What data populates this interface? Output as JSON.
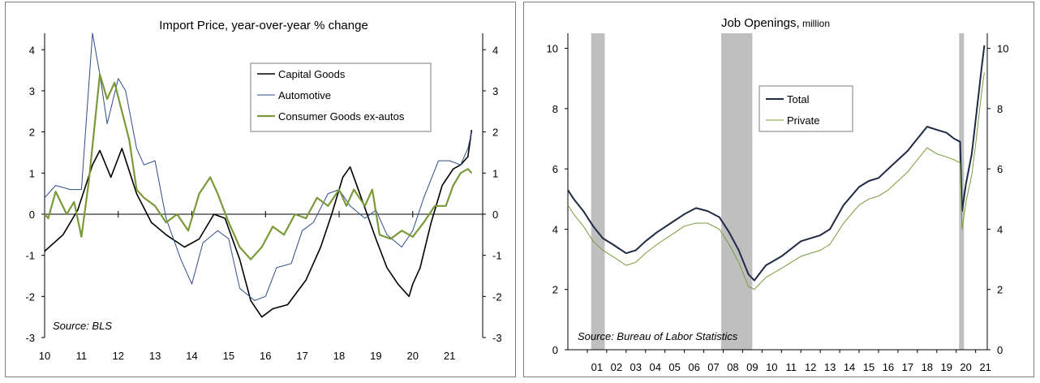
{
  "chart_data": [
    {
      "type": "line",
      "title": "Import Price, year-over-year % change",
      "source": "Source: BLS",
      "x_ticks": [
        "10",
        "11",
        "12",
        "13",
        "14",
        "15",
        "16",
        "17",
        "18",
        "19",
        "20",
        "21"
      ],
      "xlim": [
        2010.0,
        2021.9
      ],
      "ylim": [
        -3,
        4.4
      ],
      "y_ticks_left": [
        "4",
        "3",
        "2",
        "1",
        "0",
        "-1",
        "-2",
        "-3"
      ],
      "y_ticks_right": [
        "4",
        "3",
        "2",
        "1",
        "0",
        "-1",
        "-2",
        "-3"
      ],
      "grid": false,
      "legend_position": "top-right",
      "series": [
        {
          "name": "Capital Goods",
          "color": "#000000",
          "x": [
            2010.0,
            2010.5,
            2010.9,
            2011.3,
            2011.5,
            2011.8,
            2012.1,
            2012.5,
            2012.9,
            2013.3,
            2013.8,
            2014.2,
            2014.6,
            2014.9,
            2015.3,
            2015.6,
            2015.9,
            2016.2,
            2016.6,
            2017.1,
            2017.5,
            2017.8,
            2018.1,
            2018.3,
            2018.6,
            2019.0,
            2019.3,
            2019.6,
            2019.9,
            2020.0,
            2020.2,
            2020.5,
            2020.8,
            2021.1,
            2021.3,
            2021.5,
            2021.6
          ],
          "values": [
            -0.9,
            -0.5,
            0.1,
            1.2,
            1.55,
            0.9,
            1.6,
            0.5,
            -0.2,
            -0.5,
            -0.8,
            -0.6,
            0.0,
            -0.1,
            -1.1,
            -2.1,
            -2.5,
            -2.3,
            -2.2,
            -1.6,
            -0.8,
            0.0,
            0.9,
            1.15,
            0.4,
            -0.6,
            -1.3,
            -1.7,
            -2.0,
            -1.7,
            -1.3,
            -0.2,
            0.7,
            1.1,
            1.2,
            1.4,
            2.05
          ]
        },
        {
          "name": "Automotive",
          "color": "#2f4d8a",
          "x": [
            2010.0,
            2010.3,
            2010.7,
            2011.0,
            2011.3,
            2011.5,
            2011.7,
            2012.0,
            2012.2,
            2012.5,
            2012.7,
            2013.0,
            2013.3,
            2013.7,
            2014.0,
            2014.3,
            2014.7,
            2015.0,
            2015.3,
            2015.7,
            2016.0,
            2016.3,
            2016.7,
            2017.0,
            2017.3,
            2017.7,
            2018.0,
            2018.3,
            2018.7,
            2019.0,
            2019.3,
            2019.7,
            2020.0,
            2020.3,
            2020.7,
            2021.0,
            2021.3,
            2021.5,
            2021.6
          ],
          "values": [
            0.4,
            0.7,
            0.6,
            0.6,
            4.4,
            3.4,
            2.2,
            3.3,
            3.0,
            1.6,
            1.2,
            1.3,
            -0.1,
            -1.1,
            -1.7,
            -0.7,
            -0.4,
            -0.6,
            -1.8,
            -2.1,
            -2.0,
            -1.3,
            -1.2,
            -0.4,
            -0.2,
            0.5,
            0.6,
            0.2,
            -0.1,
            0.1,
            -0.5,
            -0.8,
            -0.4,
            0.4,
            1.3,
            1.3,
            1.2,
            1.6,
            2.0
          ]
        },
        {
          "name": "Consumer Goods ex-autos",
          "color": "#7a9a3a",
          "x": [
            2010.0,
            2010.1,
            2010.3,
            2010.6,
            2010.8,
            2011.0,
            2011.2,
            2011.5,
            2011.7,
            2011.9,
            2012.1,
            2012.3,
            2012.5,
            2012.7,
            2013.0,
            2013.3,
            2013.6,
            2013.9,
            2014.2,
            2014.5,
            2014.7,
            2015.0,
            2015.3,
            2015.6,
            2015.9,
            2016.2,
            2016.5,
            2016.8,
            2017.1,
            2017.4,
            2017.7,
            2018.0,
            2018.2,
            2018.4,
            2018.7,
            2018.9,
            2019.1,
            2019.4,
            2019.7,
            2020.0,
            2020.3,
            2020.6,
            2020.9,
            2021.1,
            2021.3,
            2021.5,
            2021.6
          ],
          "values": [
            0.0,
            -0.1,
            0.55,
            0.0,
            0.3,
            -0.55,
            0.8,
            3.4,
            2.8,
            3.2,
            2.5,
            1.8,
            0.6,
            0.4,
            0.2,
            -0.2,
            0.0,
            -0.4,
            0.5,
            0.9,
            0.5,
            -0.2,
            -0.8,
            -1.1,
            -0.8,
            -0.3,
            -0.5,
            0.0,
            -0.1,
            0.4,
            0.2,
            0.6,
            0.2,
            0.6,
            0.2,
            0.6,
            -0.5,
            -0.6,
            -0.4,
            -0.55,
            -0.2,
            0.2,
            0.2,
            0.7,
            1.0,
            1.1,
            1.0
          ]
        }
      ]
    },
    {
      "type": "line",
      "title": "Job Openings,",
      "title_unit": "million",
      "source": "Source: Bureau of Labor Statistics",
      "x_ticks": [
        "01",
        "02",
        "03",
        "04",
        "05",
        "06",
        "07",
        "08",
        "09",
        "10",
        "11",
        "12",
        "13",
        "14",
        "15",
        "16",
        "17",
        "18",
        "19",
        "20",
        "21"
      ],
      "xlim": [
        2000.0,
        2021.6
      ],
      "ylim": [
        0,
        10.5
      ],
      "y_ticks_left": [
        "10",
        "8",
        "6",
        "4",
        "2",
        "0"
      ],
      "y_ticks_right": [
        "10",
        "8",
        "6",
        "4",
        "2",
        "0"
      ],
      "grid": false,
      "legend_position": "top-center",
      "recessions": [
        [
          2001.2,
          2001.9
        ],
        [
          2007.9,
          2009.5
        ],
        [
          2020.15,
          2020.4
        ]
      ],
      "series": [
        {
          "name": "Total",
          "color": "#1f2a44",
          "x": [
            2000.0,
            2000.3,
            2000.8,
            2001.3,
            2001.8,
            2002.3,
            2003.0,
            2003.5,
            2004.0,
            2004.6,
            2005.3,
            2006.0,
            2006.6,
            2007.2,
            2007.8,
            2008.3,
            2008.8,
            2009.3,
            2009.6,
            2010.2,
            2011.0,
            2012.0,
            2013.0,
            2013.5,
            2014.2,
            2015.0,
            2015.5,
            2016.0,
            2016.5,
            2017.0,
            2017.5,
            2018.0,
            2018.5,
            2019.0,
            2019.5,
            2019.9,
            2020.2,
            2020.3,
            2020.5,
            2020.8,
            2021.0,
            2021.3,
            2021.45
          ],
          "values": [
            5.3,
            5.0,
            4.6,
            4.1,
            3.7,
            3.5,
            3.2,
            3.3,
            3.6,
            3.9,
            4.2,
            4.5,
            4.7,
            4.6,
            4.4,
            3.9,
            3.3,
            2.5,
            2.3,
            2.8,
            3.1,
            3.6,
            3.8,
            4.0,
            4.8,
            5.4,
            5.6,
            5.7,
            6.0,
            6.3,
            6.6,
            7.0,
            7.4,
            7.3,
            7.2,
            7.0,
            6.9,
            4.6,
            5.5,
            6.5,
            7.6,
            9.3,
            10.1
          ]
        },
        {
          "name": "Private",
          "color": "#7a9a3a",
          "x": [
            2000.0,
            2000.3,
            2000.8,
            2001.3,
            2001.8,
            2002.3,
            2003.0,
            2003.5,
            2004.0,
            2004.6,
            2005.3,
            2006.0,
            2006.6,
            2007.2,
            2007.8,
            2008.3,
            2008.8,
            2009.3,
            2009.6,
            2010.2,
            2011.0,
            2012.0,
            2013.0,
            2013.5,
            2014.2,
            2015.0,
            2015.5,
            2016.0,
            2016.5,
            2017.0,
            2017.5,
            2018.0,
            2018.5,
            2019.0,
            2019.5,
            2019.9,
            2020.2,
            2020.3,
            2020.5,
            2020.8,
            2021.0,
            2021.3,
            2021.45
          ],
          "values": [
            4.8,
            4.5,
            4.1,
            3.6,
            3.3,
            3.1,
            2.8,
            2.9,
            3.2,
            3.5,
            3.8,
            4.1,
            4.2,
            4.2,
            4.0,
            3.5,
            2.9,
            2.1,
            2.0,
            2.4,
            2.7,
            3.1,
            3.3,
            3.5,
            4.2,
            4.8,
            5.0,
            5.1,
            5.3,
            5.6,
            5.9,
            6.3,
            6.7,
            6.5,
            6.4,
            6.3,
            6.2,
            4.0,
            4.9,
            5.8,
            6.8,
            8.5,
            9.2
          ]
        }
      ]
    }
  ]
}
